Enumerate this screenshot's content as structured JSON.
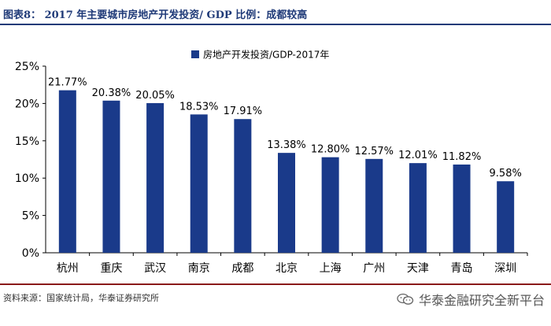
{
  "header": {
    "title": "图表8： 2017 年主要城市房地产开发投资/ GDP 比例：成都较高"
  },
  "footer": {
    "source": "资料来源：国家统计局，华泰证券研究所",
    "watermark": "华泰金融研究全新平台",
    "watermark_icon": "wechat-icon"
  },
  "chart_data": {
    "type": "bar",
    "categories": [
      "杭州",
      "重庆",
      "武汉",
      "南京",
      "成都",
      "北京",
      "上海",
      "广州",
      "天津",
      "青岛",
      "深圳"
    ],
    "series": [
      {
        "name": "房地产开发投资/GDP-2017年",
        "values": [
          21.77,
          20.38,
          20.05,
          18.53,
          17.91,
          13.38,
          12.8,
          12.57,
          12.01,
          11.82,
          9.58
        ],
        "labels": [
          "21.77%",
          "20.38%",
          "20.05%",
          "18.53%",
          "17.91%",
          "13.38%",
          "12.80%",
          "12.57%",
          "12.01%",
          "11.82%",
          "9.58%"
        ],
        "color": "#1a3a8a"
      }
    ],
    "ylim": [
      0,
      25
    ],
    "yticks": [
      "0%",
      "5%",
      "10%",
      "15%",
      "20%",
      "25%"
    ],
    "ytick_values": [
      0,
      5,
      10,
      15,
      20,
      25
    ],
    "legend_position": "top-center",
    "grid": false
  }
}
